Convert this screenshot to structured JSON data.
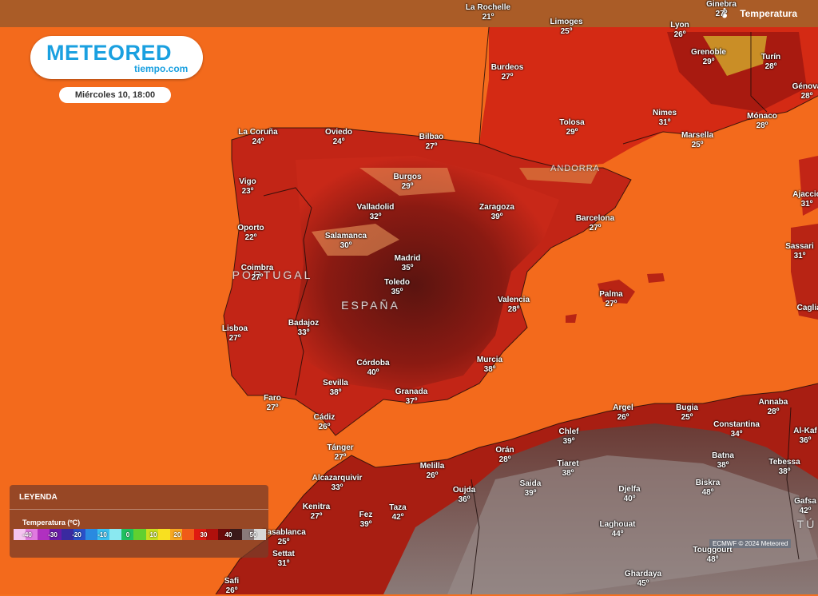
{
  "header": {
    "layer_label": "Temperatura"
  },
  "logo": {
    "brand": "METEORED",
    "subdomain": "tiempo.com"
  },
  "date_label": "Miércoles 10, 18:00",
  "countries": {
    "portugal": "PORTUGAL",
    "spain": "ESPAÑA",
    "andorra": "ANDORRA",
    "tunisia": "TÚ"
  },
  "cities": [
    {
      "name": "La Rochelle",
      "temp": "21º"
    },
    {
      "name": "Ginebra",
      "temp": "27º"
    },
    {
      "name": "Limoges",
      "temp": "25º"
    },
    {
      "name": "Lyon",
      "temp": "26º"
    },
    {
      "name": "Grenoble",
      "temp": "29º"
    },
    {
      "name": "Turín",
      "temp": "28º"
    },
    {
      "name": "Burdeos",
      "temp": "27º"
    },
    {
      "name": "Génova",
      "temp": "28º"
    },
    {
      "name": "Nimes",
      "temp": "31º"
    },
    {
      "name": "Mónaco",
      "temp": "28º"
    },
    {
      "name": "Marsella",
      "temp": "25º"
    },
    {
      "name": "Tolosa",
      "temp": "29º"
    },
    {
      "name": "La Coruña",
      "temp": "24º"
    },
    {
      "name": "Oviedo",
      "temp": "24º"
    },
    {
      "name": "Bilbao",
      "temp": "27º"
    },
    {
      "name": "Burgos",
      "temp": "29º"
    },
    {
      "name": "Vigo",
      "temp": "23º"
    },
    {
      "name": "Valladolid",
      "temp": "32º"
    },
    {
      "name": "Zaragoza",
      "temp": "39º"
    },
    {
      "name": "Barcelona",
      "temp": "27º"
    },
    {
      "name": "Ajaccio",
      "temp": "31º"
    },
    {
      "name": "Oporto",
      "temp": "22º"
    },
    {
      "name": "Salamanca",
      "temp": "30º"
    },
    {
      "name": "Sassari",
      "temp": "31º"
    },
    {
      "name": "Madrid",
      "temp": "35º"
    },
    {
      "name": "Coimbra",
      "temp": "27º"
    },
    {
      "name": "Toledo",
      "temp": "35º"
    },
    {
      "name": "Valencia",
      "temp": "28º"
    },
    {
      "name": "Palma",
      "temp": "27º"
    },
    {
      "name": "Cagliari",
      "temp": ""
    },
    {
      "name": "Badajoz",
      "temp": "33º"
    },
    {
      "name": "Lisboa",
      "temp": "27º"
    },
    {
      "name": "Córdoba",
      "temp": "40º"
    },
    {
      "name": "Murcia",
      "temp": "38º"
    },
    {
      "name": "Sevilla",
      "temp": "38º"
    },
    {
      "name": "Granada",
      "temp": "37º"
    },
    {
      "name": "Faro",
      "temp": "27º"
    },
    {
      "name": "Annaba",
      "temp": "28º"
    },
    {
      "name": "Argel",
      "temp": "26º"
    },
    {
      "name": "Bugia",
      "temp": "25º"
    },
    {
      "name": "Cádiz",
      "temp": "26º"
    },
    {
      "name": "Constantina",
      "temp": "34º"
    },
    {
      "name": "Chlef",
      "temp": "39º"
    },
    {
      "name": "Al-Kaf",
      "temp": "36º"
    },
    {
      "name": "Tánger",
      "temp": "27º"
    },
    {
      "name": "Orán",
      "temp": "28º"
    },
    {
      "name": "Batna",
      "temp": "38º"
    },
    {
      "name": "Tebessa",
      "temp": "38º"
    },
    {
      "name": "Tiaret",
      "temp": "38º"
    },
    {
      "name": "Melilla",
      "temp": "26º"
    },
    {
      "name": "Alcazarquivir",
      "temp": "33º"
    },
    {
      "name": "Saida",
      "temp": "39º"
    },
    {
      "name": "Biskra",
      "temp": "48º"
    },
    {
      "name": "Oujda",
      "temp": "36º"
    },
    {
      "name": "Djelfa",
      "temp": "40º"
    },
    {
      "name": "Gafsa",
      "temp": "42º"
    },
    {
      "name": "Kenitra",
      "temp": "27º"
    },
    {
      "name": "Taza",
      "temp": "42º"
    },
    {
      "name": "Fez",
      "temp": "39º"
    },
    {
      "name": "Laghouat",
      "temp": "44º"
    },
    {
      "name": "Casablanca",
      "temp": "25º"
    },
    {
      "name": "Touggourt",
      "temp": "48º"
    },
    {
      "name": "Settat",
      "temp": "31º"
    },
    {
      "name": "Ghardaya",
      "temp": "45º"
    },
    {
      "name": "Safi",
      "temp": "26º"
    }
  ],
  "legend": {
    "title": "LEYENDA",
    "subtitle": "Temperatura (ºC)",
    "ticks": [
      "-40",
      "-30",
      "-20",
      "-10",
      "0",
      "10",
      "20",
      "30",
      "40",
      "50"
    ],
    "colors": [
      "#f4c4f0",
      "#e07ae0",
      "#b030c0",
      "#6a1aa8",
      "#3a2aa0",
      "#2a50c8",
      "#2a8ae0",
      "#3ac0f0",
      "#8ae8f0",
      "#20c060",
      "#60d030",
      "#c8e020",
      "#f8e020",
      "#f8a820",
      "#f05a18",
      "#e01a10",
      "#b0100c",
      "#6a0a0a",
      "#3a1a1a",
      "#8a7a7a",
      "#d8d8d8"
    ]
  },
  "credit": "ECMWF © 2024 Meteored"
}
